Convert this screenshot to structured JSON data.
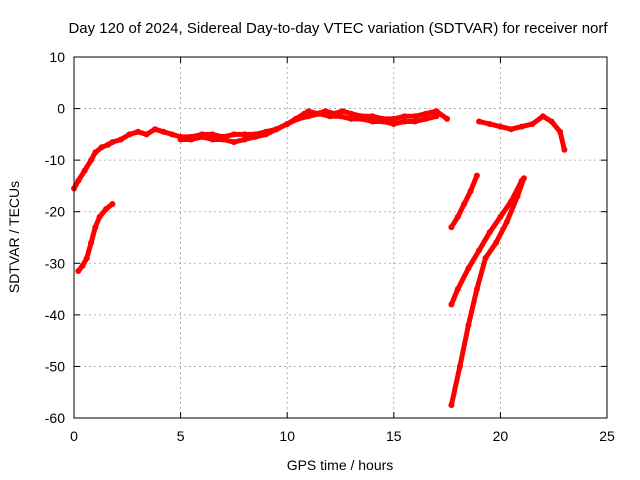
{
  "chart_data": {
    "type": "line",
    "title": "Day 120 of 2024, Sidereal Day-to-day VTEC variation (SDTVAR) for receiver norf",
    "xlabel": "GPS time / hours",
    "ylabel": "SDTVAR / TECUs",
    "xlim": [
      0,
      25
    ],
    "ylim": [
      -60,
      10
    ],
    "xticks": [
      "0",
      "5",
      "10",
      "15",
      "20",
      "25"
    ],
    "yticks": [
      "10",
      "0",
      "-10",
      "-20",
      "-30",
      "-40",
      "-50",
      "-60"
    ],
    "grid": true,
    "color": "#ff0000",
    "series": [
      {
        "x": [
          0.0,
          0.2,
          0.5,
          0.8,
          1.0,
          1.3,
          1.6,
          1.8,
          2.2,
          2.6,
          3.0,
          3.4,
          3.8,
          4.2,
          4.6,
          5.0,
          5.5,
          6.0,
          6.5,
          7.0,
          7.5,
          8.0,
          8.5,
          9.0,
          9.5,
          10.0,
          10.4,
          10.8,
          11.0,
          11.4,
          11.8,
          12.2,
          12.6,
          13.0,
          13.5,
          14.0,
          14.5,
          15.0,
          15.5,
          16.0,
          16.5,
          17.0,
          17.5
        ],
        "y": [
          -15.5,
          -14,
          -12,
          -10,
          -8.5,
          -7.5,
          -7,
          -6.5,
          -6,
          -5,
          -4.5,
          -5,
          -4,
          -4.5,
          -5,
          -5.5,
          -5.5,
          -5,
          -5,
          -5.5,
          -5,
          -5,
          -5,
          -4.5,
          -4,
          -3,
          -2,
          -1,
          -0.5,
          -1,
          -0.5,
          -1,
          -0.5,
          -1,
          -1.5,
          -1.5,
          -2,
          -2,
          -1.5,
          -1.5,
          -1,
          -0.5,
          -2
        ]
      },
      {
        "x": [
          5.0,
          5.5,
          6.0,
          6.5,
          7.0,
          7.5,
          8.0,
          8.5,
          9.0,
          9.5,
          10.0,
          10.5,
          11.0,
          11.5,
          12.0,
          12.5,
          13.0,
          13.5,
          14.0,
          14.5,
          15.0,
          15.5,
          16.0,
          16.5,
          17.0
        ],
        "y": [
          -6,
          -6,
          -5.5,
          -6,
          -6,
          -6.5,
          -6,
          -5.5,
          -5,
          -4,
          -3,
          -2,
          -1.5,
          -1,
          -1.5,
          -1.5,
          -2,
          -2,
          -2.5,
          -2.5,
          -3,
          -2.5,
          -2.5,
          -2,
          -1.5
        ]
      },
      {
        "x": [
          0.2,
          0.4,
          0.6,
          0.8,
          1.0,
          1.2,
          1.5,
          1.8
        ],
        "y": [
          -31.5,
          -30.5,
          -29,
          -26,
          -23,
          -21,
          -19.5,
          -18.5
        ]
      },
      {
        "x": [
          17.7,
          18.0,
          18.3,
          18.6,
          18.9
        ],
        "y": [
          -23,
          -21,
          -18.5,
          -16,
          -13
        ]
      },
      {
        "x": [
          17.7,
          18.0,
          18.5,
          19.0,
          19.5,
          20.0,
          20.5,
          21.0
        ],
        "y": [
          -38,
          -35,
          -31,
          -27.5,
          -24,
          -21,
          -18,
          -14
        ]
      },
      {
        "x": [
          17.7,
          18.1,
          18.5,
          18.9,
          19.3,
          19.8,
          20.3,
          20.8,
          21.1
        ],
        "y": [
          -57.5,
          -50,
          -42,
          -35,
          -29,
          -26,
          -22,
          -17,
          -13.5
        ]
      },
      {
        "x": [
          19.0,
          19.5,
          20.0,
          20.5,
          21.0,
          21.5,
          22.0,
          22.4,
          22.8,
          23.0
        ],
        "y": [
          -2.5,
          -3,
          -3.5,
          -4,
          -3.5,
          -3,
          -1.5,
          -2.5,
          -4.5,
          -8
        ]
      }
    ]
  }
}
